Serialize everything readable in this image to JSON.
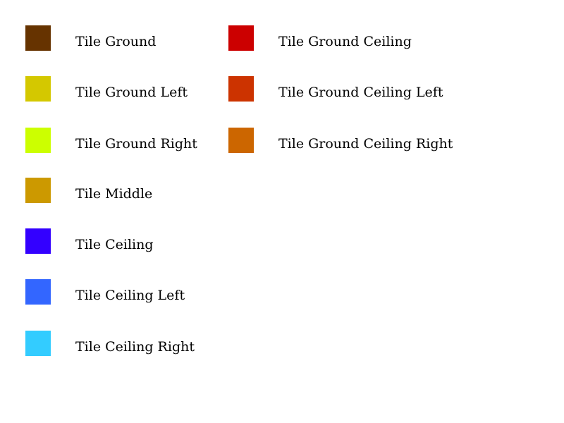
{
  "legend": {
    "left_column": [
      {
        "label": "Tile Ground",
        "color": "#663300"
      },
      {
        "label": "Tile Ground Left",
        "color": "#D4C800"
      },
      {
        "label": "Tile Ground Right",
        "color": "#CCFF00"
      },
      {
        "label": "Tile Middle",
        "color": "#CC9900"
      },
      {
        "label": "Tile Ceiling",
        "color": "#3300FF"
      },
      {
        "label": "Tile Ceiling Left",
        "color": "#3366FF"
      },
      {
        "label": "Tile Ceiling Right",
        "color": "#33CCFF"
      }
    ],
    "right_column": [
      {
        "label": "Tile Ground Ceiling",
        "color": "#CC0000"
      },
      {
        "label": "Tile Ground Ceiling Left",
        "color": "#CC3300"
      },
      {
        "label": "Tile Ground Ceiling Right",
        "color": "#CC6600"
      }
    ]
  }
}
